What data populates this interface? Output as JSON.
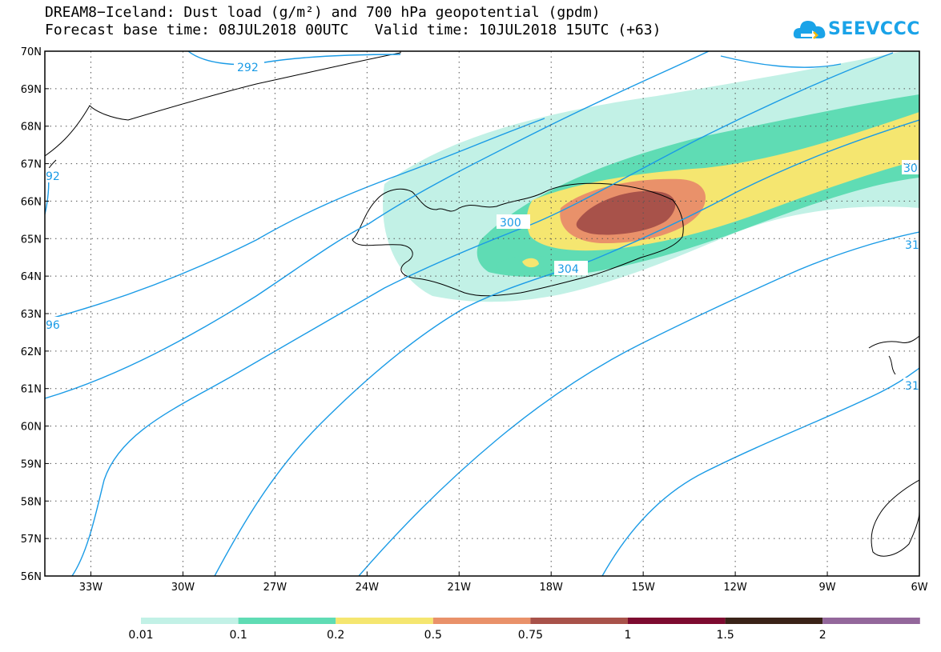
{
  "title_line1": "DREAM8−Iceland: Dust load (g/m²) and 700 hPa geopotential (gpdm)",
  "title_line2": "Forecast base time: 08JUL2018 00UTC   Valid time: 10JUL2018 15UTC (+63)",
  "logo": {
    "text": "SEEVCCC",
    "icon": "cloud-icon",
    "color": "#1aa3e8"
  },
  "map": {
    "lat_range": [
      56,
      70
    ],
    "lon_range": [
      -34.5,
      -6
    ],
    "lat_ticks": [
      "56N",
      "57N",
      "58N",
      "59N",
      "60N",
      "61N",
      "62N",
      "63N",
      "64N",
      "65N",
      "66N",
      "67N",
      "68N",
      "69N",
      "70N"
    ],
    "lon_ticks": [
      "33W",
      "30W",
      "27W",
      "24W",
      "21W",
      "18W",
      "15W",
      "12W",
      "9W",
      "6W"
    ],
    "contour_labels": [
      "292",
      "300",
      "304",
      "30",
      "96",
      "92",
      "31",
      "31"
    ],
    "contour_color": "#1a9be6"
  },
  "colorbar": {
    "labels": [
      "0.01",
      "0.1",
      "0.2",
      "0.5",
      "0.75",
      "1",
      "1.5",
      "2"
    ],
    "colors": [
      "#c2f1e6",
      "#5fdcb4",
      "#f5e670",
      "#e9916a",
      "#a8524a",
      "#7d0a30",
      "#3a2318",
      "#93679b"
    ]
  }
}
